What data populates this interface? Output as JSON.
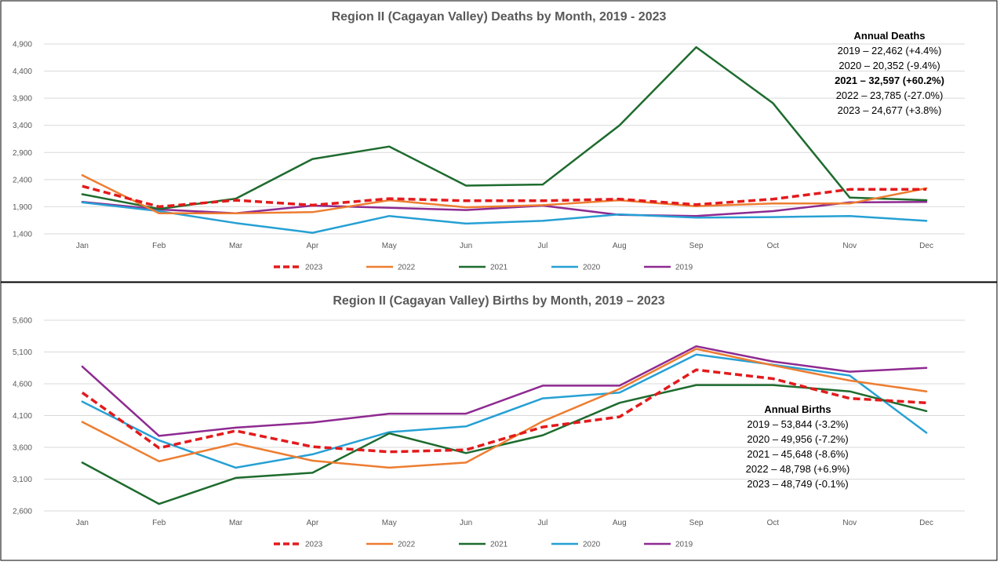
{
  "chart_data": [
    {
      "type": "line",
      "title": "Region II (Cagayan Valley) Deaths by Month, 2019 - 2023",
      "xlabel": "",
      "ylabel": "",
      "categories": [
        "Jan",
        "Feb",
        "Mar",
        "Apr",
        "May",
        "Jun",
        "Jul",
        "Aug",
        "Sep",
        "Oct",
        "Nov",
        "Dec"
      ],
      "ylim": [
        1400,
        4900
      ],
      "yticks": [
        "1,400",
        "1,900",
        "2,400",
        "2,900",
        "3,400",
        "3,900",
        "4,400",
        "4,900"
      ],
      "grid": true,
      "legend_position": "bottom",
      "series": [
        {
          "name": "2023",
          "color": "#e31a1c",
          "dash": true,
          "values": [
            2280,
            1900,
            2020,
            1930,
            2050,
            2010,
            2010,
            2040,
            1940,
            2040,
            2220,
            2220
          ]
        },
        {
          "name": "2022",
          "color": "#ed7d31",
          "dash": false,
          "values": [
            2480,
            1780,
            1780,
            1800,
            2020,
            1890,
            1930,
            2020,
            1910,
            1960,
            1960,
            2240
          ]
        },
        {
          "name": "2021",
          "color": "#1e6b2e",
          "dash": false,
          "values": [
            2130,
            1860,
            2050,
            2780,
            3010,
            2290,
            2310,
            3400,
            4840,
            3810,
            2070,
            2020
          ]
        },
        {
          "name": "2020",
          "color": "#26a0d4",
          "dash": false,
          "values": [
            1980,
            1820,
            1600,
            1420,
            1730,
            1590,
            1640,
            1760,
            1700,
            1710,
            1730,
            1640
          ]
        },
        {
          "name": "2019",
          "color": "#8e2a91",
          "dash": false,
          "values": [
            1990,
            1850,
            1780,
            1920,
            1880,
            1840,
            1920,
            1750,
            1730,
            1820,
            1980,
            1990
          ]
        }
      ],
      "annotation": {
        "heading": "Annual Deaths",
        "lines": [
          {
            "text": "2019 – 22,462 (+4.4%)",
            "bold": false
          },
          {
            "text": "2020 – 20,352 (-9.4%)",
            "bold": false
          },
          {
            "text": "2021 – 32,597 (+60.2%)",
            "bold": true
          },
          {
            "text": "2022 – 23,785 (-27.0%)",
            "bold": false
          },
          {
            "text": "2023 – 24,677 (+3.8%)",
            "bold": false
          }
        ]
      }
    },
    {
      "type": "line",
      "title": "Region II (Cagayan Valley) Births by Month, 2019 – 2023",
      "xlabel": "",
      "ylabel": "",
      "categories": [
        "Jan",
        "Feb",
        "Mar",
        "Apr",
        "May",
        "Jun",
        "Jul",
        "Aug",
        "Sep",
        "Oct",
        "Nov",
        "Dec"
      ],
      "ylim": [
        2600,
        5600
      ],
      "yticks": [
        "2,600",
        "3,100",
        "3,600",
        "4,100",
        "4,600",
        "5,100",
        "5,600"
      ],
      "grid": true,
      "legend_position": "bottom",
      "series": [
        {
          "name": "2023",
          "color": "#e31a1c",
          "dash": true,
          "values": [
            4460,
            3590,
            3860,
            3610,
            3530,
            3560,
            3920,
            4080,
            4820,
            4680,
            4370,
            4300
          ]
        },
        {
          "name": "2022",
          "color": "#ed7d31",
          "dash": false,
          "values": [
            4000,
            3380,
            3660,
            3390,
            3280,
            3360,
            4010,
            4520,
            5150,
            4890,
            4650,
            4480
          ]
        },
        {
          "name": "2021",
          "color": "#1e6b2e",
          "dash": false,
          "values": [
            3360,
            2710,
            3120,
            3200,
            3820,
            3510,
            3790,
            4300,
            4580,
            4580,
            4480,
            4170
          ]
        },
        {
          "name": "2020",
          "color": "#26a0d4",
          "dash": false,
          "values": [
            4320,
            3710,
            3280,
            3490,
            3840,
            3930,
            4370,
            4460,
            5060,
            4900,
            4730,
            3830
          ]
        },
        {
          "name": "2019",
          "color": "#8e2a91",
          "dash": false,
          "values": [
            4870,
            3780,
            3910,
            3990,
            4130,
            4130,
            4570,
            4570,
            5190,
            4950,
            4790,
            4850
          ]
        }
      ],
      "annotation": {
        "heading": "Annual Births",
        "lines": [
          {
            "text": "2019 – 53,844 (-3.2%)",
            "bold": false
          },
          {
            "text": "2020 – 49,956 (-7.2%)",
            "bold": false
          },
          {
            "text": "2021 – 45,648 (-8.6%)",
            "bold": false
          },
          {
            "text": "2022 – 48,798 (+6.9%)",
            "bold": false
          },
          {
            "text": "2023 – 48,749 (-0.1%)",
            "bold": false
          }
        ]
      }
    }
  ]
}
